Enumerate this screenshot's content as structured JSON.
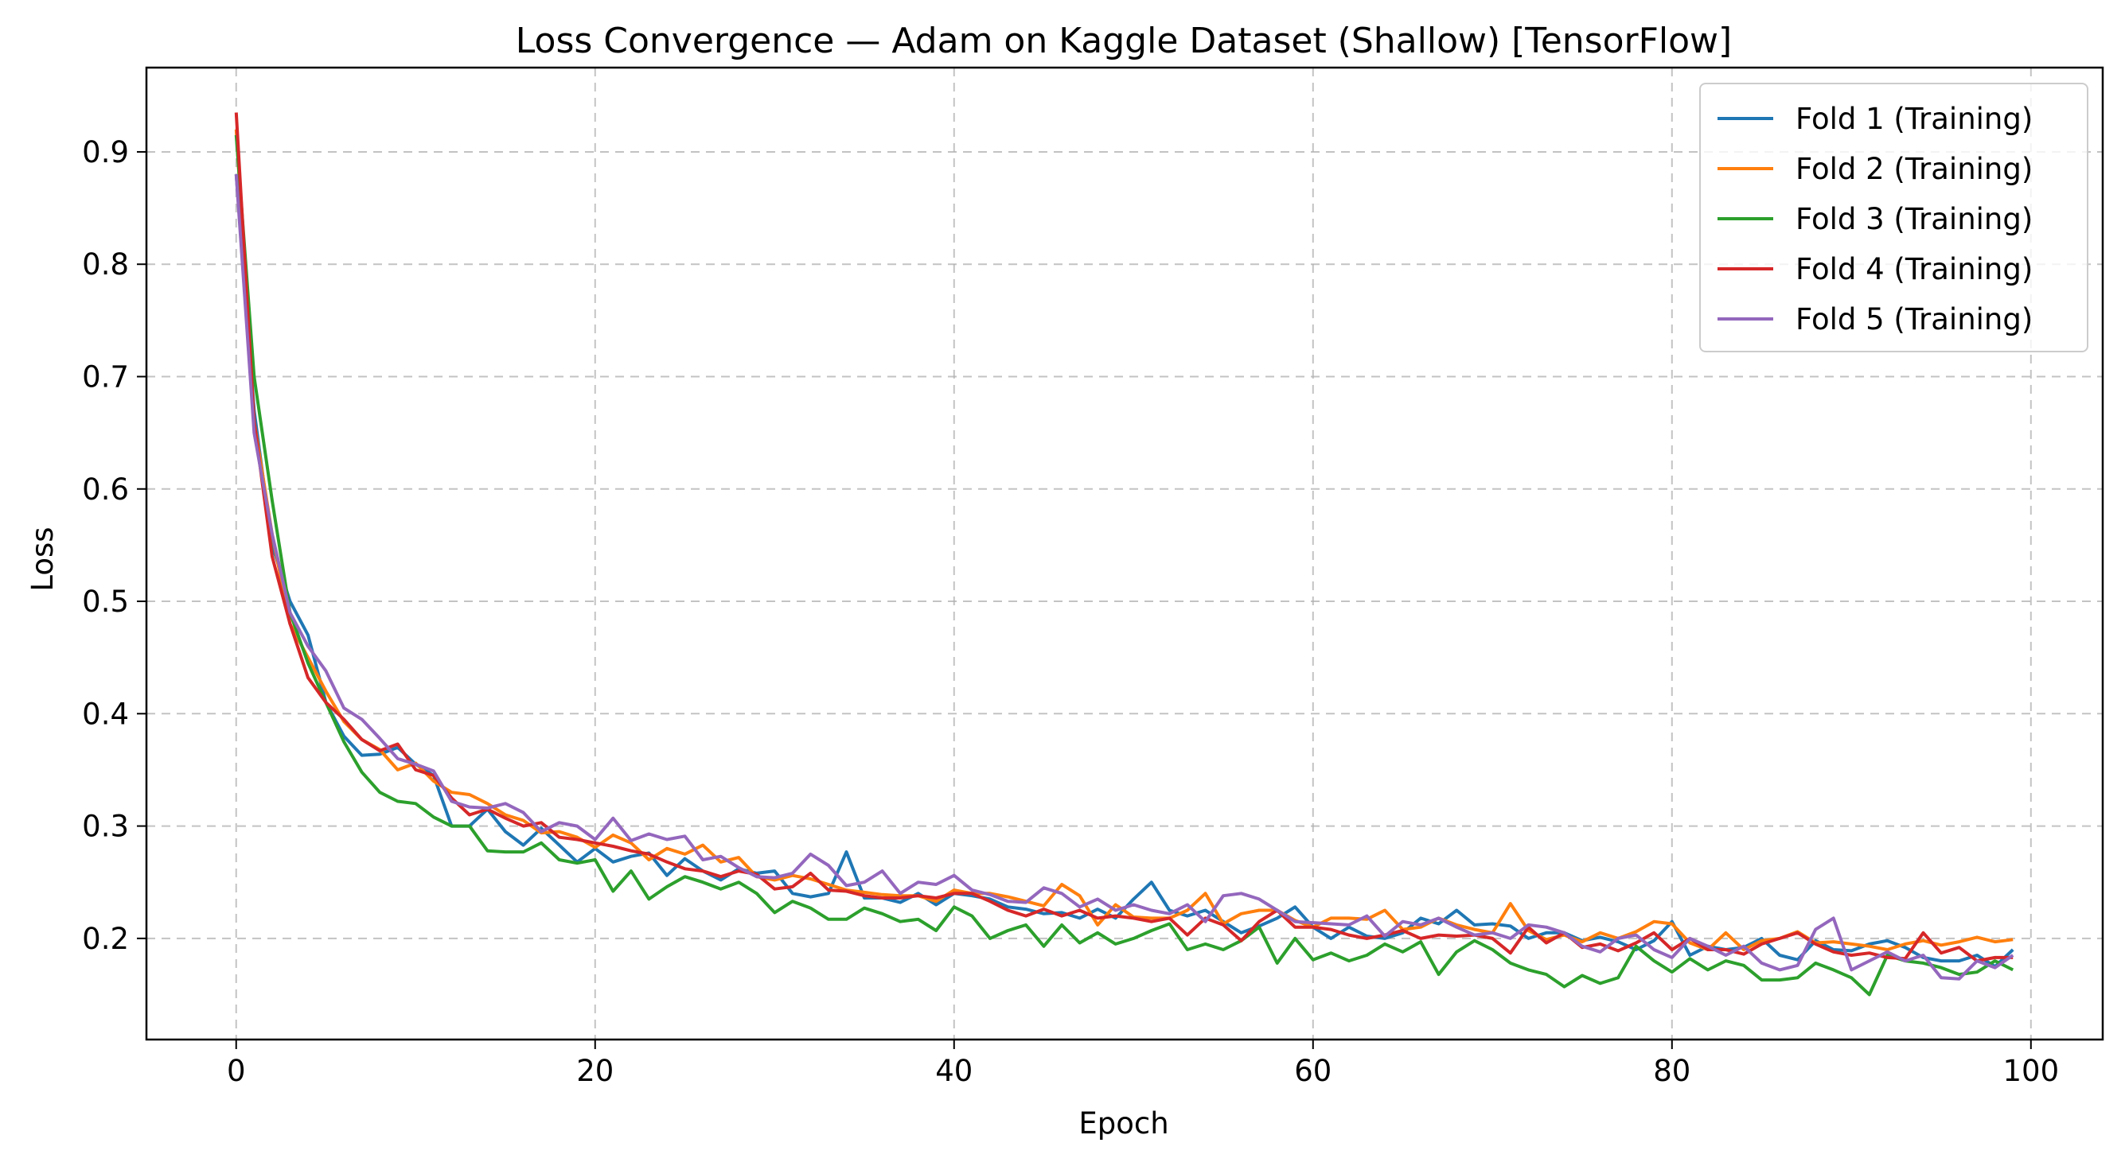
{
  "chart_data": {
    "type": "line",
    "title": "Loss Convergence — Adam on Kaggle Dataset (Shallow) [TensorFlow]",
    "xlabel": "Epoch",
    "ylabel": "Loss",
    "xlim": [
      -5,
      104
    ],
    "ylim": [
      0.11,
      0.975
    ],
    "xticks": [
      0,
      20,
      40,
      60,
      80,
      100
    ],
    "yticks": [
      0.2,
      0.3,
      0.4,
      0.5,
      0.6,
      0.7,
      0.8,
      0.9
    ],
    "xtick_labels": [
      "0",
      "20",
      "40",
      "60",
      "80",
      "100"
    ],
    "ytick_labels": [
      "0.2",
      "0.3",
      "0.4",
      "0.5",
      "0.6",
      "0.7",
      "0.8",
      "0.9"
    ],
    "grid": true,
    "legend_position": "top-right",
    "x": [
      0,
      1,
      2,
      3,
      4,
      5,
      6,
      7,
      8,
      9,
      10,
      11,
      12,
      13,
      14,
      15,
      16,
      17,
      18,
      19,
      20,
      21,
      22,
      23,
      24,
      25,
      26,
      27,
      28,
      29,
      30,
      31,
      32,
      33,
      34,
      35,
      36,
      37,
      38,
      39,
      40,
      41,
      42,
      43,
      44,
      45,
      46,
      47,
      48,
      49,
      50,
      51,
      52,
      53,
      54,
      55,
      56,
      57,
      58,
      59,
      60,
      61,
      62,
      63,
      64,
      65,
      66,
      67,
      68,
      69,
      70,
      71,
      72,
      73,
      74,
      75,
      76,
      77,
      78,
      79,
      80,
      81,
      82,
      83,
      84,
      85,
      86,
      87,
      88,
      89,
      90,
      91,
      92,
      93,
      94,
      95,
      96,
      97,
      98,
      99
    ],
    "series": [
      {
        "name": "Fold 1 (Training)",
        "color": "#1f77b4",
        "values": [
          0.88,
          0.67,
          0.55,
          0.5,
          0.47,
          0.41,
          0.38,
          0.363,
          0.364,
          0.37,
          0.355,
          0.345,
          0.3,
          0.3,
          0.315,
          0.295,
          0.283,
          0.298,
          0.283,
          0.268,
          0.28,
          0.268,
          0.273,
          0.276,
          0.256,
          0.271,
          0.26,
          0.252,
          0.262,
          0.258,
          0.26,
          0.24,
          0.237,
          0.24,
          0.277,
          0.236,
          0.236,
          0.232,
          0.24,
          0.23,
          0.24,
          0.238,
          0.235,
          0.228,
          0.226,
          0.222,
          0.223,
          0.218,
          0.226,
          0.218,
          0.235,
          0.25,
          0.225,
          0.22,
          0.225,
          0.215,
          0.205,
          0.211,
          0.218,
          0.228,
          0.21,
          0.2,
          0.21,
          0.202,
          0.2,
          0.205,
          0.218,
          0.213,
          0.225,
          0.212,
          0.213,
          0.211,
          0.2,
          0.205,
          0.205,
          0.198,
          0.201,
          0.197,
          0.19,
          0.198,
          0.215,
          0.185,
          0.193,
          0.19,
          0.192,
          0.2,
          0.185,
          0.181,
          0.198,
          0.19,
          0.189,
          0.195,
          0.198,
          0.192,
          0.183,
          0.18,
          0.18,
          0.185,
          0.175,
          0.19
        ]
      },
      {
        "name": "Fold 2 (Training)",
        "color": "#ff7f0e",
        "values": [
          0.92,
          0.66,
          0.56,
          0.48,
          0.45,
          0.42,
          0.393,
          0.377,
          0.368,
          0.35,
          0.356,
          0.34,
          0.33,
          0.328,
          0.32,
          0.31,
          0.305,
          0.294,
          0.295,
          0.29,
          0.281,
          0.292,
          0.285,
          0.27,
          0.28,
          0.275,
          0.283,
          0.268,
          0.272,
          0.255,
          0.252,
          0.256,
          0.253,
          0.248,
          0.243,
          0.241,
          0.239,
          0.238,
          0.238,
          0.233,
          0.243,
          0.24,
          0.24,
          0.237,
          0.233,
          0.229,
          0.248,
          0.238,
          0.212,
          0.23,
          0.219,
          0.218,
          0.218,
          0.225,
          0.24,
          0.213,
          0.222,
          0.225,
          0.225,
          0.216,
          0.21,
          0.218,
          0.218,
          0.217,
          0.225,
          0.208,
          0.21,
          0.218,
          0.212,
          0.208,
          0.205,
          0.231,
          0.207,
          0.199,
          0.203,
          0.197,
          0.205,
          0.2,
          0.206,
          0.215,
          0.213,
          0.196,
          0.19,
          0.205,
          0.19,
          0.198,
          0.2,
          0.206,
          0.196,
          0.197,
          0.195,
          0.193,
          0.19,
          0.195,
          0.198,
          0.194,
          0.197,
          0.201,
          0.197,
          0.199
        ]
      },
      {
        "name": "Fold 3 (Training)",
        "color": "#2ca02c",
        "values": [
          0.915,
          0.7,
          0.59,
          0.49,
          0.445,
          0.41,
          0.375,
          0.348,
          0.33,
          0.322,
          0.32,
          0.308,
          0.3,
          0.3,
          0.278,
          0.277,
          0.277,
          0.285,
          0.27,
          0.267,
          0.27,
          0.242,
          0.26,
          0.235,
          0.246,
          0.255,
          0.25,
          0.244,
          0.25,
          0.24,
          0.223,
          0.233,
          0.227,
          0.217,
          0.217,
          0.227,
          0.222,
          0.215,
          0.217,
          0.207,
          0.228,
          0.22,
          0.2,
          0.207,
          0.212,
          0.193,
          0.212,
          0.196,
          0.205,
          0.195,
          0.2,
          0.207,
          0.213,
          0.19,
          0.195,
          0.19,
          0.198,
          0.21,
          0.178,
          0.2,
          0.181,
          0.187,
          0.18,
          0.185,
          0.195,
          0.188,
          0.197,
          0.168,
          0.188,
          0.198,
          0.19,
          0.178,
          0.172,
          0.168,
          0.157,
          0.167,
          0.16,
          0.165,
          0.193,
          0.18,
          0.17,
          0.182,
          0.172,
          0.18,
          0.176,
          0.163,
          0.163,
          0.165,
          0.178,
          0.172,
          0.165,
          0.15,
          0.185,
          0.18,
          0.178,
          0.174,
          0.168,
          0.17,
          0.18,
          0.172
        ]
      },
      {
        "name": "Fold 4 (Training)",
        "color": "#d62728",
        "values": [
          0.935,
          0.66,
          0.54,
          0.48,
          0.432,
          0.41,
          0.395,
          0.377,
          0.367,
          0.373,
          0.35,
          0.345,
          0.325,
          0.31,
          0.315,
          0.307,
          0.3,
          0.303,
          0.29,
          0.288,
          0.285,
          0.282,
          0.278,
          0.275,
          0.268,
          0.262,
          0.26,
          0.255,
          0.26,
          0.257,
          0.244,
          0.246,
          0.258,
          0.243,
          0.242,
          0.238,
          0.236,
          0.236,
          0.238,
          0.236,
          0.24,
          0.24,
          0.233,
          0.225,
          0.22,
          0.226,
          0.22,
          0.225,
          0.218,
          0.22,
          0.218,
          0.215,
          0.218,
          0.203,
          0.218,
          0.212,
          0.198,
          0.215,
          0.225,
          0.21,
          0.21,
          0.208,
          0.203,
          0.2,
          0.203,
          0.207,
          0.2,
          0.203,
          0.202,
          0.203,
          0.2,
          0.187,
          0.21,
          0.196,
          0.205,
          0.192,
          0.195,
          0.189,
          0.196,
          0.205,
          0.19,
          0.2,
          0.19,
          0.19,
          0.186,
          0.195,
          0.2,
          0.205,
          0.195,
          0.188,
          0.185,
          0.187,
          0.183,
          0.182,
          0.205,
          0.187,
          0.192,
          0.18,
          0.183,
          0.183
        ]
      },
      {
        "name": "Fold 5 (Training)",
        "color": "#9467bd",
        "values": [
          0.88,
          0.65,
          0.56,
          0.49,
          0.46,
          0.438,
          0.405,
          0.395,
          0.378,
          0.36,
          0.355,
          0.349,
          0.322,
          0.317,
          0.316,
          0.32,
          0.312,
          0.295,
          0.303,
          0.3,
          0.288,
          0.307,
          0.287,
          0.293,
          0.288,
          0.291,
          0.27,
          0.273,
          0.263,
          0.255,
          0.254,
          0.258,
          0.275,
          0.265,
          0.247,
          0.25,
          0.26,
          0.24,
          0.25,
          0.248,
          0.256,
          0.243,
          0.239,
          0.233,
          0.232,
          0.245,
          0.24,
          0.228,
          0.235,
          0.225,
          0.23,
          0.225,
          0.222,
          0.23,
          0.215,
          0.238,
          0.24,
          0.235,
          0.225,
          0.215,
          0.214,
          0.213,
          0.212,
          0.22,
          0.202,
          0.215,
          0.212,
          0.218,
          0.21,
          0.203,
          0.205,
          0.2,
          0.212,
          0.21,
          0.205,
          0.193,
          0.188,
          0.2,
          0.203,
          0.19,
          0.183,
          0.2,
          0.193,
          0.185,
          0.193,
          0.178,
          0.172,
          0.176,
          0.208,
          0.218,
          0.172,
          0.18,
          0.188,
          0.18,
          0.185,
          0.165,
          0.164,
          0.18,
          0.174,
          0.185
        ]
      }
    ]
  }
}
